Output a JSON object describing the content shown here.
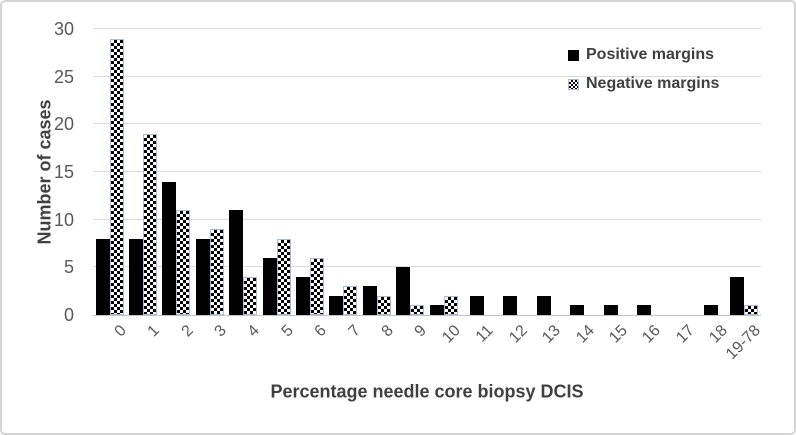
{
  "chart_data": {
    "type": "bar",
    "title": "",
    "categories": [
      "0",
      "1",
      "2",
      "3",
      "4",
      "5",
      "6",
      "7",
      "8",
      "9",
      "10",
      "11",
      "12",
      "13",
      "14",
      "15",
      "16",
      "17",
      "18",
      "19-78"
    ],
    "series": [
      {
        "name": "Positive margins",
        "fill": "solid",
        "color": "#000000",
        "values": [
          8,
          8,
          14,
          8,
          11,
          6,
          4,
          2,
          3,
          5,
          1,
          2,
          2,
          2,
          1,
          1,
          1,
          0,
          1,
          4
        ]
      },
      {
        "name": "Negative margins",
        "fill": "checkered",
        "color": "#000000",
        "border_color": "#aab8da",
        "values": [
          29,
          19,
          11,
          9,
          4,
          8,
          6,
          3,
          2,
          1,
          2,
          0,
          0,
          0,
          0,
          0,
          0,
          0,
          0,
          1
        ]
      }
    ],
    "xlabel": "Percentage needle core biopsy DCIS",
    "ylabel": "Number of cases",
    "ylim": [
      0,
      30
    ],
    "yticks": [
      0,
      5,
      10,
      15,
      20,
      25,
      30
    ],
    "grid": true,
    "legend_position": "top-right"
  },
  "colors": {
    "axis_tick_text": "#595959",
    "axis_title_text": "#404040",
    "legend_text": "#404040",
    "gridline": "#d9d9d9",
    "axis_line": "#c3c3c3",
    "positive_bar": "#000000",
    "negative_bar_border": "#aab8da",
    "background": "#ffffff",
    "frame_border": "#d4d4d4"
  }
}
